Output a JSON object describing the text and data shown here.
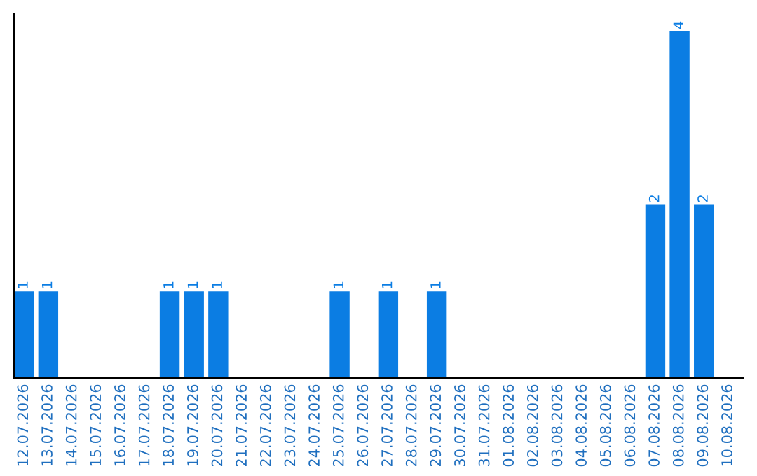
{
  "chart_data": {
    "type": "bar",
    "categories": [
      "12.07.2026",
      "13.07.2026",
      "14.07.2026",
      "15.07.2026",
      "16.07.2026",
      "17.07.2026",
      "18.07.2026",
      "19.07.2026",
      "20.07.2026",
      "21.07.2026",
      "22.07.2026",
      "23.07.2026",
      "24.07.2026",
      "25.07.2026",
      "26.07.2026",
      "27.07.2026",
      "28.07.2026",
      "29.07.2026",
      "30.07.2026",
      "31.07.2026",
      "01.08.2026",
      "02.08.2026",
      "03.08.2026",
      "04.08.2026",
      "05.08.2026",
      "06.08.2026",
      "07.08.2026",
      "08.08.2026",
      "09.08.2026",
      "10.08.2026"
    ],
    "values": [
      1,
      1,
      0,
      0,
      0,
      0,
      1,
      1,
      1,
      0,
      0,
      0,
      0,
      1,
      0,
      1,
      0,
      1,
      0,
      0,
      0,
      0,
      0,
      0,
      0,
      0,
      2,
      4,
      2,
      0
    ],
    "value_labels": [
      "1",
      "1",
      null,
      null,
      null,
      null,
      "1",
      "1",
      "1",
      null,
      null,
      null,
      null,
      "1",
      null,
      "1",
      null,
      "1",
      null,
      null,
      null,
      null,
      null,
      null,
      null,
      null,
      "2",
      "4",
      "2",
      null
    ],
    "color": "#0b7de3",
    "grid": false,
    "legend": false,
    "tick_labels": "x"
  }
}
